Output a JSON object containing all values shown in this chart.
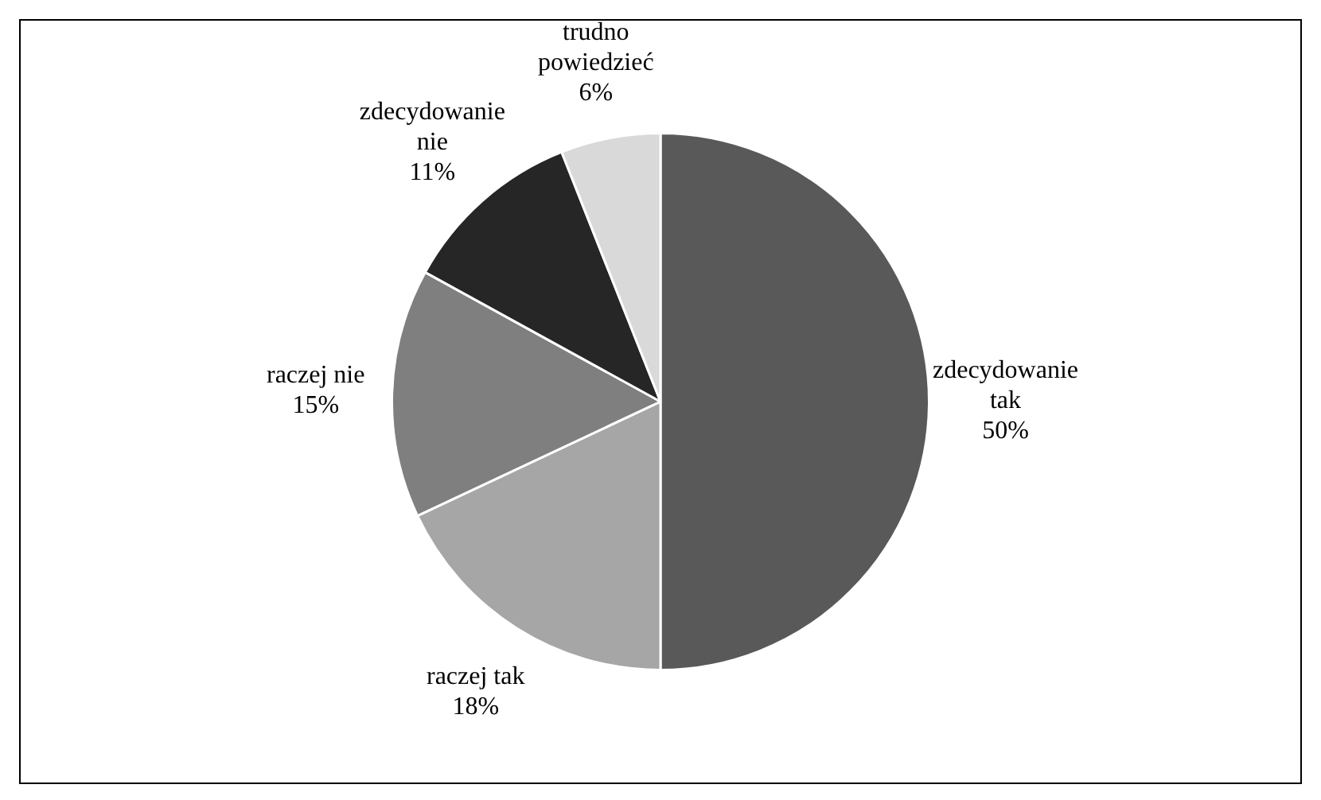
{
  "chart_data": {
    "type": "pie",
    "categories": [
      "zdecydowanie tak",
      "raczej tak",
      "raczej nie",
      "zdecydowanie nie",
      "trudno powiedzieć"
    ],
    "values": [
      50,
      18,
      15,
      11,
      6
    ],
    "colors": [
      "#595959",
      "#a6a6a6",
      "#7f7f7f",
      "#262626",
      "#d9d9d9"
    ],
    "value_labels": [
      "50%",
      "18%",
      "15%",
      "11%",
      "6%"
    ],
    "legend": false
  }
}
